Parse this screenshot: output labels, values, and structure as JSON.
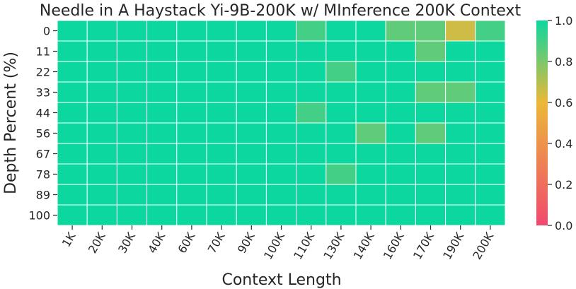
{
  "chart_data": {
    "type": "heatmap",
    "title": "Needle in A Haystack Yi-9B-200K w/ MInference 200K Context",
    "xlabel": "Context Length",
    "ylabel": "Depth Percent (%)",
    "x_categories": [
      "1K",
      "20K",
      "30K",
      "40K",
      "60K",
      "70K",
      "90K",
      "100K",
      "110K",
      "130K",
      "140K",
      "160K",
      "170K",
      "190K",
      "200K"
    ],
    "y_categories": [
      "0",
      "11",
      "22",
      "33",
      "44",
      "56",
      "67",
      "78",
      "89",
      "100"
    ],
    "values": [
      [
        1.0,
        1.0,
        1.0,
        1.0,
        1.0,
        1.0,
        1.0,
        1.0,
        0.9,
        1.0,
        1.0,
        0.85,
        0.85,
        0.65,
        0.9
      ],
      [
        1.0,
        1.0,
        1.0,
        1.0,
        1.0,
        1.0,
        1.0,
        1.0,
        1.0,
        1.0,
        1.0,
        1.0,
        0.85,
        1.0,
        1.0
      ],
      [
        1.0,
        1.0,
        1.0,
        1.0,
        1.0,
        1.0,
        1.0,
        1.0,
        1.0,
        0.9,
        1.0,
        1.0,
        1.0,
        1.0,
        1.0
      ],
      [
        1.0,
        1.0,
        1.0,
        1.0,
        1.0,
        1.0,
        1.0,
        1.0,
        1.0,
        1.0,
        1.0,
        1.0,
        0.85,
        0.85,
        1.0
      ],
      [
        1.0,
        1.0,
        1.0,
        1.0,
        1.0,
        1.0,
        1.0,
        1.0,
        0.9,
        1.0,
        1.0,
        1.0,
        1.0,
        1.0,
        1.0
      ],
      [
        1.0,
        1.0,
        1.0,
        1.0,
        1.0,
        1.0,
        1.0,
        1.0,
        1.0,
        1.0,
        0.85,
        1.0,
        0.85,
        1.0,
        1.0
      ],
      [
        1.0,
        1.0,
        1.0,
        1.0,
        1.0,
        1.0,
        1.0,
        1.0,
        1.0,
        1.0,
        1.0,
        1.0,
        1.0,
        1.0,
        1.0
      ],
      [
        1.0,
        1.0,
        1.0,
        1.0,
        1.0,
        1.0,
        1.0,
        1.0,
        1.0,
        0.9,
        1.0,
        1.0,
        1.0,
        1.0,
        1.0
      ],
      [
        1.0,
        1.0,
        1.0,
        1.0,
        1.0,
        1.0,
        1.0,
        1.0,
        1.0,
        1.0,
        1.0,
        1.0,
        1.0,
        1.0,
        1.0
      ],
      [
        1.0,
        1.0,
        1.0,
        1.0,
        1.0,
        1.0,
        1.0,
        1.0,
        1.0,
        1.0,
        1.0,
        1.0,
        1.0,
        1.0,
        1.0
      ]
    ],
    "vmin": 0.0,
    "vmax": 1.0,
    "colorbar_ticks": [
      0.0,
      0.2,
      0.4,
      0.6,
      0.8,
      1.0
    ],
    "colorbar_tick_labels": [
      "0.0",
      "0.2",
      "0.4",
      "0.6",
      "0.8",
      "1.0"
    ],
    "colorscale": [
      "#F0496E",
      "#EBB839",
      "#0CD79F"
    ],
    "grid": true
  }
}
